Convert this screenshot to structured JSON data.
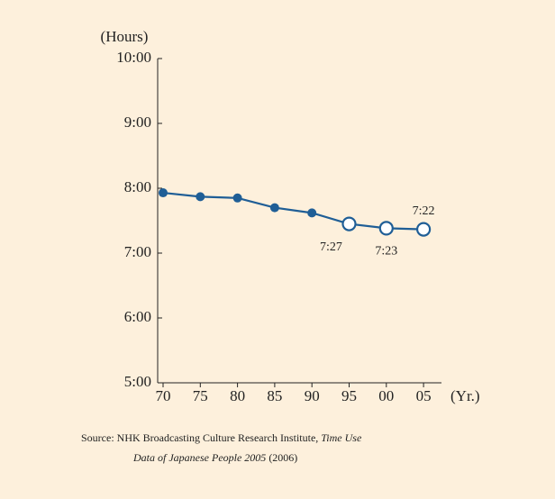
{
  "chart_data": {
    "type": "line",
    "y_axis_label": "(Hours)",
    "x_axis_label": "(Yr.)",
    "categories": [
      "70",
      "75",
      "80",
      "85",
      "90",
      "95",
      "00",
      "05"
    ],
    "series": [
      {
        "color": "#1f5e96",
        "values": [
          7.93,
          7.87,
          7.85,
          7.7,
          7.62,
          7.45,
          7.3833,
          7.3667
        ],
        "value_labels": [
          null,
          null,
          null,
          null,
          null,
          "7:27",
          "7:23",
          "7:22"
        ],
        "marker_styles": [
          "filled",
          "filled",
          "filled",
          "filled",
          "filled",
          "open",
          "open",
          "open"
        ]
      }
    ],
    "ylim": [
      5,
      10
    ],
    "yticks": [
      {
        "value": 5,
        "label": "5:00"
      },
      {
        "value": 6,
        "label": "6:00"
      },
      {
        "value": 7,
        "label": "7:00"
      },
      {
        "value": 8,
        "label": "8:00"
      },
      {
        "value": 9,
        "label": "9:00"
      },
      {
        "value": 10,
        "label": "10:00"
      }
    ],
    "source": [
      "Source: NHK Broadcasting Culture Research Institute, ",
      "Time Use",
      "Data of Japanese People 2005",
      " (2006)"
    ]
  }
}
